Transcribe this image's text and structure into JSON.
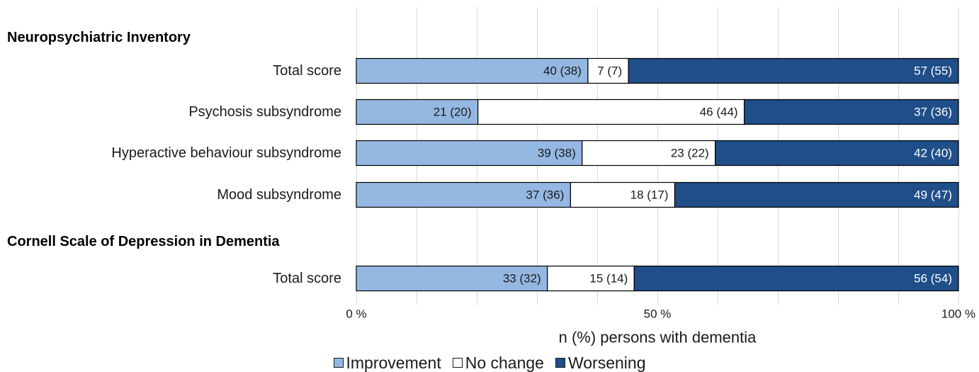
{
  "chart_data": {
    "type": "bar",
    "orientation": "horizontal",
    "stacked": true,
    "normalized_percent": true,
    "groups": [
      {
        "heading": "Neuropsychiatric Inventory",
        "rows": [
          {
            "category": "Total score",
            "values": [
              40,
              7,
              57
            ],
            "labels": [
              "40 (38)",
              "7 (7)",
              "57 (55)"
            ]
          },
          {
            "category": "Psychosis subsyndrome",
            "values": [
              21,
              46,
              37
            ],
            "labels": [
              "21 (20)",
              "46 (44)",
              "37 (36)"
            ]
          },
          {
            "category": "Hyperactive behaviour subsyndrome",
            "values": [
              39,
              23,
              42
            ],
            "labels": [
              "39 (38)",
              "23 (22)",
              "42 (40)"
            ]
          },
          {
            "category": "Mood subsyndrome",
            "values": [
              37,
              18,
              49
            ],
            "labels": [
              "37 (36)",
              "18 (17)",
              "49 (47)"
            ]
          }
        ]
      },
      {
        "heading": "Cornell Scale of Depression in Dementia",
        "rows": [
          {
            "category": "Total score",
            "values": [
              33,
              15,
              56
            ],
            "labels": [
              "33 (32)",
              "15 (14)",
              "56 (54)"
            ]
          }
        ]
      }
    ],
    "series": [
      {
        "name": "Improvement",
        "color": "#95b8e3"
      },
      {
        "name": "No change",
        "color": "#ffffff"
      },
      {
        "name": "Worsening",
        "color": "#1f4e89"
      }
    ],
    "xlabel": "n (%) persons with dementia",
    "x_ticks": [
      "0 %",
      "50 %",
      "100 %"
    ],
    "xlim": [
      0,
      100
    ],
    "grid": true,
    "legend_position": "bottom"
  }
}
